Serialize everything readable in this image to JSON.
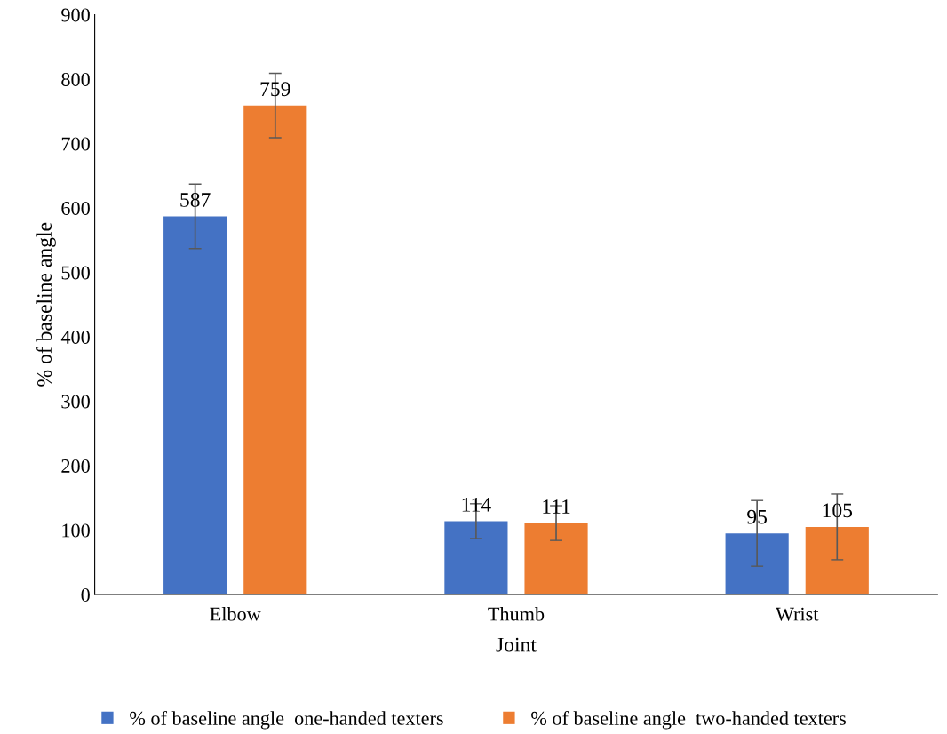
{
  "chart_data": {
    "type": "bar",
    "xlabel": "Joint",
    "ylabel": "% of baseline angle",
    "categories": [
      "Elbow",
      "Thumb",
      "Wrist"
    ],
    "series": [
      {
        "name": "% of baseline angle  one-handed texters",
        "color": "#4472c4",
        "values": [
          587,
          114,
          95
        ],
        "errors": [
          50,
          27,
          51
        ]
      },
      {
        "name": "% of baseline angle  two-handed texters",
        "color": "#ed7d31",
        "values": [
          759,
          111,
          105
        ],
        "errors": [
          50,
          27,
          51
        ]
      }
    ],
    "ylim": [
      0,
      900
    ],
    "yticks": [
      0,
      100,
      200,
      300,
      400,
      500,
      600,
      700,
      800,
      900
    ],
    "grid": false,
    "legend": "bottom",
    "data_labels": true
  }
}
